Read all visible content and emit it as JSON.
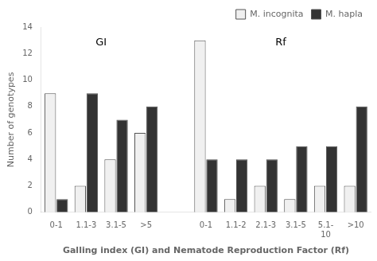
{
  "chart_data": {
    "type": "bar",
    "x_label": "Galling index (GI) and Nematode Reproduction Factor (Rf)",
    "y_label": "Number of genotypes",
    "categories": [
      "0-1",
      "1.1-3",
      "3.1-5",
      ">5",
      null,
      "0-1",
      "1.1-2",
      "2.1-3",
      "3.1-5",
      "5.1-\n10",
      ">10"
    ],
    "series": [
      {
        "name": "M. incognita",
        "color": "#f0f0f0",
        "values": [
          9,
          2,
          4,
          6,
          null,
          13,
          1,
          2,
          1,
          2,
          2
        ]
      },
      {
        "name": "M. hapla",
        "color": "#333333",
        "values": [
          1,
          9,
          7,
          8,
          null,
          4,
          4,
          4,
          5,
          5,
          8
        ]
      }
    ],
    "annotations": [
      {
        "text": "GI",
        "x": 1.5,
        "y": 13.2
      },
      {
        "text": "Rf",
        "x": 7.5,
        "y": 13.2
      }
    ],
    "ylim": [
      0,
      14
    ],
    "yticks": [
      0,
      2,
      4,
      6,
      8,
      10,
      12,
      14
    ],
    "grid": false,
    "legend": "upper right"
  }
}
